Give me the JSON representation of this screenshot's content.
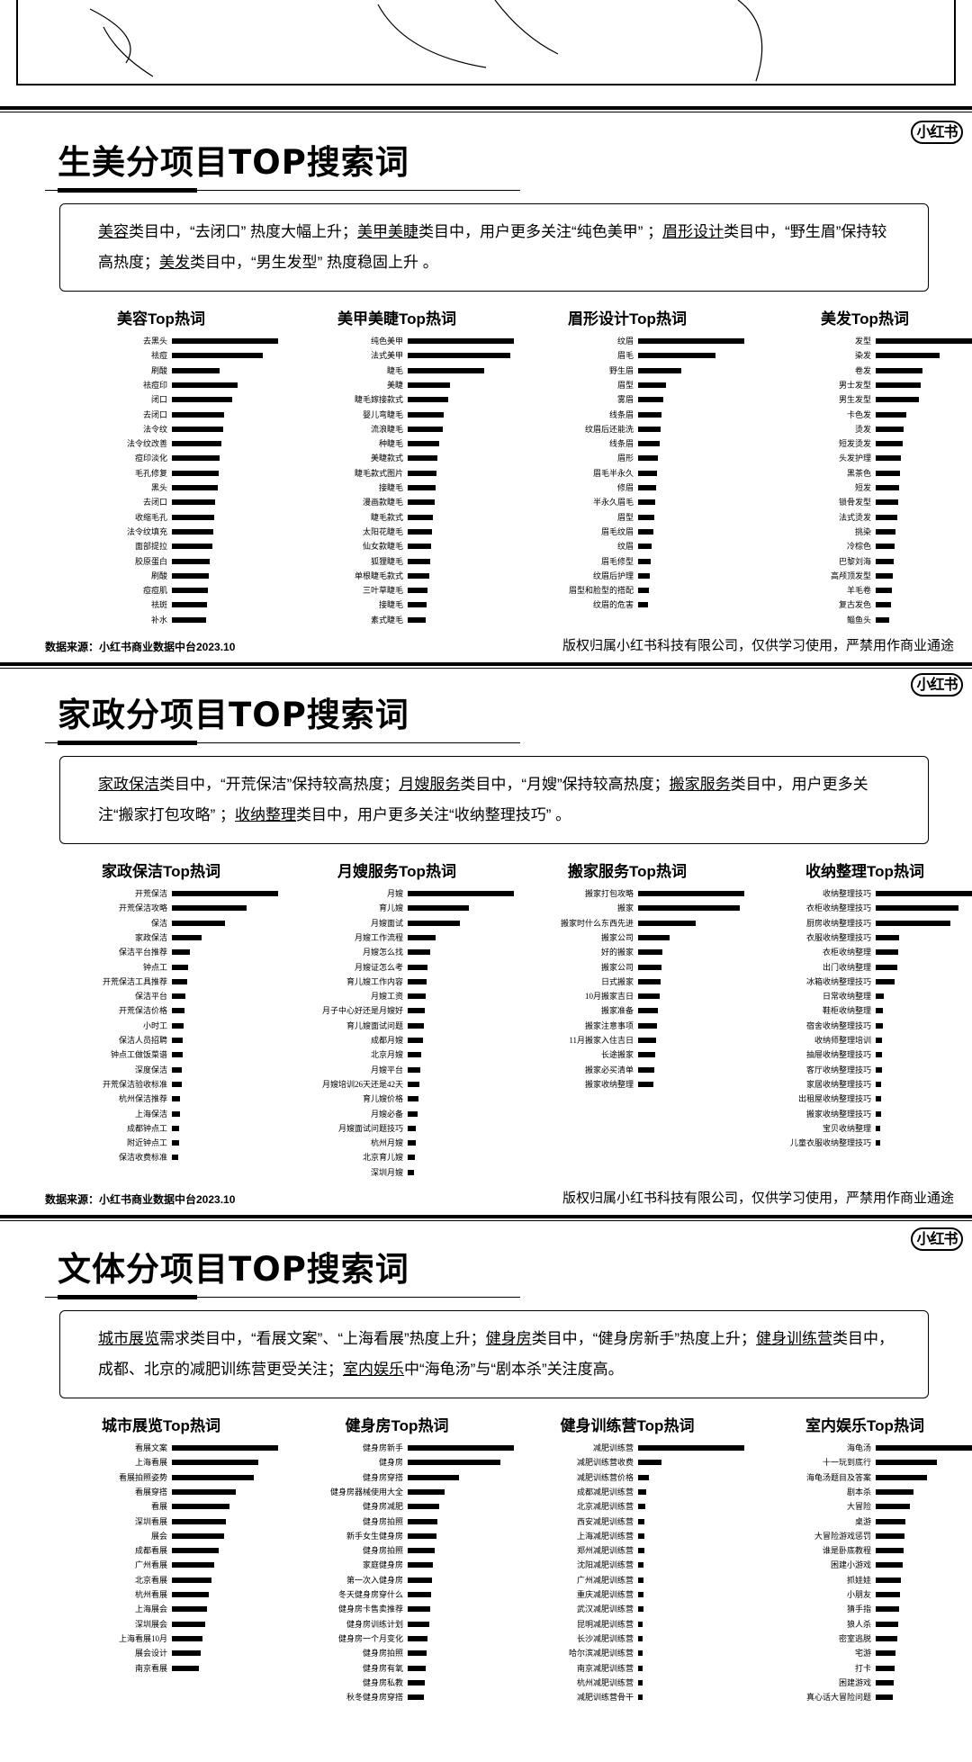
{
  "logo_text": "小红书",
  "sections": [
    {
      "title": "生美分项目TOP搜索词",
      "summary": [
        {
          "t": "美容",
          "hl": true
        },
        {
          "t": "类目中，“去闭口” 热度大幅上升；"
        },
        {
          "t": "美甲美睫",
          "hl": true
        },
        {
          "t": "类目中，用户更多关注“纯色美甲” ；"
        },
        {
          "t": "眉形设计",
          "hl": true
        },
        {
          "t": "类目中，“野生眉”保持较高热度；"
        },
        {
          "t": "美发",
          "hl": true
        },
        {
          "t": "类目中，“男生发型” 热度稳固上升 。"
        }
      ],
      "panels": [
        {
          "title": "美容Top热词",
          "labels": [
            "去黑头",
            "祛痘",
            "刷酸",
            "祛痘印",
            "闭口",
            "去闭口",
            "法令纹",
            "法令纹改善",
            "痘印淡化",
            "毛孔修复",
            "黑头",
            "去闭口",
            "收缩毛孔",
            "法令纹填充",
            "面部提拉",
            "胶原蛋白",
            "刷酸",
            "痘痘肌",
            "祛斑",
            "补水"
          ],
          "values": [
            100,
            86,
            45,
            62,
            57,
            49,
            48,
            47,
            45,
            44,
            43,
            41,
            40,
            39,
            38,
            36,
            35,
            34,
            33,
            32
          ]
        },
        {
          "title": "美甲美睫Top热词",
          "labels": [
            "纯色美甲",
            "法式美甲",
            "睫毛",
            "美睫",
            "睫毛嫁接款式",
            "婴儿弯睫毛",
            "流浪睫毛",
            "种睫毛",
            "美睫款式",
            "睫毛款式图片",
            "接睫毛",
            "漫画款睫毛",
            "睫毛款式",
            "太阳花睫毛",
            "仙女款睫毛",
            "狐狸睫毛",
            "单根睫毛款式",
            "三叶草睫毛",
            "接睫毛",
            "素式睫毛"
          ],
          "values": [
            100,
            97,
            72,
            40,
            38,
            34,
            33,
            30,
            28,
            27,
            26,
            25,
            24,
            23,
            22,
            21,
            20,
            19,
            18,
            17
          ]
        },
        {
          "title": "眉形设计Top热词",
          "labels": [
            "纹眉",
            "眉毛",
            "野生眉",
            "眉型",
            "雾眉",
            "线条眉",
            "纹眉后还能洗",
            "线条眉",
            "眉形",
            "眉毛半永久",
            "修眉",
            "半永久眉毛",
            "眉型",
            "眉毛纹眉",
            "纹眉",
            "眉毛修型",
            "纹眉后护理",
            "眉型和脸型的搭配",
            "纹眉的危害"
          ],
          "values": [
            100,
            73,
            41,
            26,
            24,
            22,
            21,
            20,
            19,
            18,
            17,
            16,
            15,
            14,
            13,
            12,
            11,
            10,
            9
          ]
        },
        {
          "title": "美发Top热词",
          "labels": [
            "发型",
            "染发",
            "卷发",
            "男士发型",
            "男生发型",
            "卡色发",
            "烫发",
            "短发烫发",
            "头发护理",
            "黑茶色",
            "短发",
            "锁骨发型",
            "法式烫发",
            "挑染",
            "冷棕色",
            "巴黎刘海",
            "高颅顶发型",
            "羊毛卷",
            "复古发色",
            "鲻鱼头"
          ],
          "values": [
            100,
            60,
            44,
            42,
            41,
            29,
            26,
            25,
            24,
            23,
            22,
            21,
            20,
            19,
            18,
            17,
            16,
            15,
            14,
            13
          ]
        }
      ],
      "source": "数据来源：小红书商业数据中台2023.10",
      "copyright": "版权归属小红书科技有限公司，仅供学习使用，严禁用作商业通途"
    },
    {
      "title": "家政分项目TOP搜索词",
      "summary": [
        {
          "t": "家政保洁",
          "hl": true
        },
        {
          "t": "类目中，“开荒保洁”保持较高热度；"
        },
        {
          "t": "月嫂服务",
          "hl": true
        },
        {
          "t": "类目中，“月嫂”保持较高热度；"
        },
        {
          "t": "搬家服务",
          "hl": true
        },
        {
          "t": "类目中，用户更多关注“搬家打包攻略” ；"
        },
        {
          "t": "收纳整理",
          "hl": true
        },
        {
          "t": "类目中，用户更多关注“收纳整理技巧” 。"
        }
      ],
      "panels": [
        {
          "title": "家政保洁Top热词",
          "labels": [
            "开荒保洁",
            "开荒保洁攻略",
            "保洁",
            "家政保洁",
            "保洁平台推荐",
            "钟点工",
            "开荒保洁工具推荐",
            "保洁平台",
            "开荒保洁价格",
            "小时工",
            "保洁人员招聘",
            "钟点工做饭菜谱",
            "深度保洁",
            "开荒保洁验收标准",
            "杭州保洁推荐",
            "上海保洁",
            "成都钟点工",
            "附近钟点工",
            "保洁收费标准"
          ],
          "values": [
            100,
            70,
            50,
            28,
            17,
            15,
            14,
            13,
            12,
            11,
            10,
            10,
            9,
            9,
            8,
            8,
            7,
            7,
            6
          ]
        },
        {
          "title": "月嫂服务Top热词",
          "labels": [
            "月嫂",
            "育儿嫂",
            "月嫂面试",
            "月嫂工作流程",
            "月嫂怎么找",
            "月嫂证怎么考",
            "育儿嫂工作内容",
            "月嫂工资",
            "月子中心好还是月嫂好",
            "育儿嫂面试问题",
            "成都月嫂",
            "北京月嫂",
            "月嫂平台",
            "月嫂培训26天还是42天",
            "育儿嫂价格",
            "月嫂必备",
            "月嫂面试问题技巧",
            "杭州月嫂",
            "北京育儿嫂",
            "深圳月嫂"
          ],
          "values": [
            100,
            58,
            49,
            26,
            21,
            19,
            18,
            17,
            16,
            15,
            14,
            13,
            12,
            11,
            10,
            9,
            8,
            8,
            7,
            6
          ]
        },
        {
          "title": "搬家服务Top热词",
          "labels": [
            "搬家打包攻略",
            "搬家",
            "搬家时什么东西先进",
            "搬家公司",
            "好的搬家",
            "搬家公司",
            "日式搬家",
            "10月搬家吉日",
            "搬家准备",
            "搬家注意事项",
            "11月搬家入住吉日",
            "长途搬家",
            "搬家必买清单",
            "搬家收纳整理"
          ],
          "values": [
            100,
            96,
            54,
            30,
            23,
            22,
            21,
            20,
            19,
            18,
            17,
            16,
            15,
            14
          ]
        },
        {
          "title": "收纳整理Top热词",
          "labels": [
            "收纳整理技巧",
            "衣柜收纳整理技巧",
            "厨房收纳整理技巧",
            "衣服收纳整理技巧",
            "衣柜收纳整理",
            "出门收纳整理",
            "冰箱收纳整理技巧",
            "日常收纳整理",
            "鞋柜收纳整理",
            "宿舍收纳整理技巧",
            "收纳师整理培训",
            "抽屉收纳整理技巧",
            "客厅收纳整理技巧",
            "家居收纳整理技巧",
            "出租屋收纳整理技巧",
            "搬家收纳整理技巧",
            "宝贝收纳整理",
            "儿童衣服收纳整理技巧"
          ],
          "values": [
            100,
            78,
            70,
            22,
            21,
            20,
            18,
            8,
            7,
            7,
            6,
            6,
            6,
            5,
            5,
            5,
            4,
            4
          ]
        }
      ],
      "source": "数据来源：小红书商业数据中台2023.10",
      "copyright": "版权归属小红书科技有限公司，仅供学习使用，严禁用作商业通途"
    },
    {
      "title": "文体分项目TOP搜索词",
      "summary": [
        {
          "t": "城市展览",
          "hl": true
        },
        {
          "t": "需求类目中，“看展文案”、“上海看展”热度上升；"
        },
        {
          "t": "健身房",
          "hl": true
        },
        {
          "t": "类目中，“健身房新手”热度上升；"
        },
        {
          "t": "健身训练营",
          "hl": true
        },
        {
          "t": "类目中，成都、北京的减肥训练营更受关注；"
        },
        {
          "t": "室内娱乐",
          "hl": true
        },
        {
          "t": "中“海龟汤”与“剧本杀”关注度高。"
        }
      ],
      "panels": [
        {
          "title": "城市展览Top热词",
          "labels": [
            "看展文案",
            "上海看展",
            "看展拍照姿势",
            "看展穿搭",
            "看展",
            "深圳看展",
            "展会",
            "成都看展",
            "广州看展",
            "北京看展",
            "杭州看展",
            "上海展会",
            "深圳展会",
            "上海看展10月",
            "展会设计",
            "南京看展"
          ],
          "values": [
            100,
            81,
            77,
            60,
            54,
            51,
            49,
            44,
            40,
            37,
            35,
            33,
            31,
            29,
            27,
            25
          ]
        },
        {
          "title": "健身房Top热词",
          "labels": [
            "健身房新手",
            "健身房",
            "健身房穿搭",
            "健身房器械使用大全",
            "健身房减肥",
            "健身房拍照",
            "新手女生健身房",
            "健身房拍照",
            "家庭健身房",
            "第一次入健身房",
            "冬天健身房穿什么",
            "健身房卡售卖推荐",
            "健身房训练计划",
            "健身房一个月变化",
            "健身房拍照",
            "健身房有氧",
            "健身房私教",
            "秋冬健身房穿搭"
          ],
          "values": [
            100,
            87,
            48,
            35,
            30,
            28,
            27,
            25,
            24,
            23,
            22,
            21,
            20,
            19,
            18,
            17,
            16,
            15
          ]
        },
        {
          "title": "健身训练营Top热词",
          "labels": [
            "减肥训练营",
            "减肥训练营收费",
            "减肥训练营价格",
            "成都减肥训练营",
            "北京减肥训练营",
            "西安减肥训练营",
            "上海减肥训练营",
            "郑州减肥训练营",
            "沈阳减肥训练营",
            "广州减肥训练营",
            "重庆减肥训练营",
            "武汉减肥训练营",
            "昆明减肥训练营",
            "长沙减肥训练营",
            "哈尔滨减肥训练营",
            "南京减肥训练营",
            "杭州减肥训练营",
            "减肥训练营骨干"
          ],
          "values": [
            100,
            22,
            10,
            8,
            7,
            6,
            6,
            6,
            5,
            5,
            5,
            5,
            4,
            4,
            4,
            4,
            4,
            4
          ]
        },
        {
          "title": "室内娱乐Top热词",
          "labels": [
            "海龟汤",
            "十一玩到底行",
            "海龟汤题目及答案",
            "剧本杀",
            "大冒险",
            "桌游",
            "大冒险游戏惩罚",
            "谁是卧底教程",
            "困建小游戏",
            "抓娃娃",
            "小朋友",
            "猜手指",
            "狼人杀",
            "密室逃脱",
            "宅游",
            "打卡",
            "困建游戏",
            "真心话大冒险问题"
          ],
          "values": [
            100,
            58,
            48,
            36,
            32,
            28,
            27,
            26,
            25,
            24,
            23,
            22,
            21,
            20,
            19,
            18,
            17,
            16
          ]
        }
      ]
    }
  ]
}
